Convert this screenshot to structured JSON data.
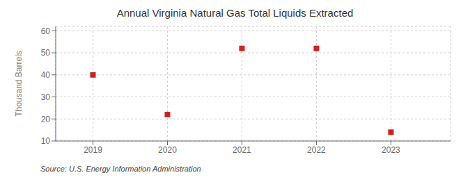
{
  "chart_data": {
    "type": "scatter",
    "title": "Annual Virginia Natural Gas Total Liquids Extracted",
    "ylabel": "Thousand Barrels",
    "annotations": [
      "Source: U.S. Energy Information Administration"
    ],
    "x": [
      2019,
      2020,
      2021,
      2022,
      2023
    ],
    "values": [
      40,
      22,
      52,
      52,
      14
    ],
    "color": "#cc2222",
    "marker": "square",
    "xlim": [
      2018.5,
      2023.8
    ],
    "xticks": [
      2019,
      2020,
      2021,
      2022,
      2023
    ],
    "ylim": [
      10,
      62
    ],
    "yticks": [
      10,
      20,
      30,
      40,
      50,
      60
    ],
    "grid": true
  }
}
